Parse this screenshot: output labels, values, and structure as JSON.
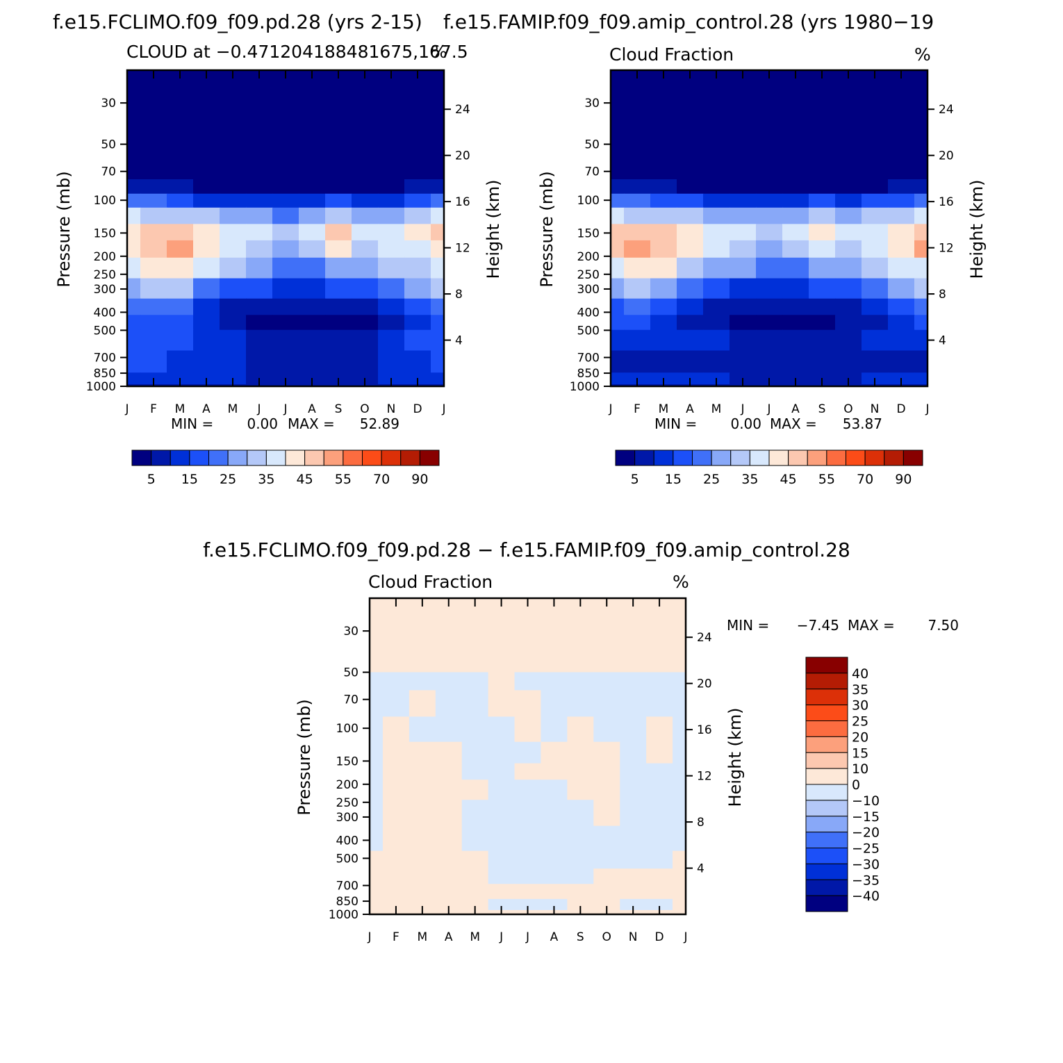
{
  "chart_data": [
    {
      "type": "heatmap",
      "id": "p1",
      "title": "f.e15.FCLIMO.f09_f09.pd.28 (yrs 2-15)",
      "subtitle_left": "CLOUD at -0.471204188481675,167.5",
      "subtitle_right": "%",
      "ylabel": "Pressure (mb)",
      "ylabel_right": "Height (km)",
      "x_ticks": [
        "J",
        "F",
        "M",
        "A",
        "M",
        "J",
        "J",
        "A",
        "S",
        "O",
        "N",
        "D",
        "J"
      ],
      "y_ticks": [
        30,
        50,
        70,
        100,
        150,
        200,
        250,
        300,
        400,
        500,
        700,
        850,
        1000
      ],
      "y_range": [
        20,
        1000
      ],
      "height_ticks": [
        4,
        8,
        12,
        16,
        20,
        24
      ],
      "min_label": "MIN =",
      "min": "0.00",
      "max_label": "MAX =",
      "max": "52.89",
      "colorbar_labels": [
        "5",
        "15",
        "25",
        "35",
        "45",
        "55",
        "70",
        "90"
      ],
      "rows": [
        {
          "p": 20,
          "v": [
            1,
            1,
            1,
            1,
            1,
            1,
            1,
            1,
            1,
            1,
            1,
            1,
            1
          ]
        },
        {
          "p": 70,
          "v": [
            1,
            1,
            1,
            1,
            1,
            1,
            1,
            1,
            1,
            1,
            1,
            1,
            1
          ]
        },
        {
          "p": 85,
          "v": [
            8,
            7,
            6,
            3,
            2,
            2,
            2,
            2,
            3,
            1,
            2,
            5,
            8
          ]
        },
        {
          "p": 100,
          "v": [
            22,
            20,
            18,
            14,
            12,
            11,
            11,
            12,
            15,
            11,
            13,
            17,
            22
          ]
        },
        {
          "p": 120,
          "v": [
            36,
            34,
            33,
            30,
            27,
            25,
            24,
            26,
            34,
            25,
            28,
            34,
            38
          ]
        },
        {
          "p": 150,
          "v": [
            44,
            47,
            47,
            42,
            38,
            35,
            30,
            38,
            49,
            35,
            38,
            43,
            45
          ]
        },
        {
          "p": 180,
          "v": [
            44,
            49,
            50,
            43,
            35,
            30,
            27,
            30,
            40,
            30,
            35,
            38,
            42
          ]
        },
        {
          "p": 230,
          "v": [
            38,
            42,
            41,
            35,
            30,
            25,
            22,
            23,
            28,
            26,
            30,
            33,
            36
          ]
        },
        {
          "p": 300,
          "v": [
            28,
            31,
            30,
            23,
            18,
            15,
            13,
            13,
            15,
            15,
            20,
            25,
            30
          ]
        },
        {
          "p": 380,
          "v": [
            20,
            23,
            20,
            13,
            9,
            6,
            5,
            5,
            6,
            7,
            12,
            16,
            21
          ]
        },
        {
          "p": 450,
          "v": [
            17,
            18,
            15,
            10,
            6,
            2,
            1,
            2,
            2,
            3,
            8,
            13,
            17
          ]
        },
        {
          "p": 550,
          "v": [
            18,
            18,
            16,
            14,
            11,
            8,
            7,
            7,
            7,
            9,
            12,
            15,
            18
          ]
        },
        {
          "p": 750,
          "v": [
            15,
            15,
            14,
            14,
            11,
            9,
            9,
            9,
            9,
            9,
            10,
            13,
            15
          ]
        },
        {
          "p": 950,
          "v": [
            10,
            10,
            10,
            10,
            10,
            9,
            9,
            9,
            9,
            9,
            10,
            10,
            10
          ]
        },
        {
          "p": 1000,
          "v": [
            6,
            6,
            6,
            6,
            6,
            6,
            6,
            6,
            6,
            6,
            6,
            6,
            6
          ]
        }
      ]
    },
    {
      "type": "heatmap",
      "id": "p2",
      "title": "f.e15.FAMIP.f09_f09.amip_control.28 (yrs 1980-19",
      "subtitle_left": "Cloud Fraction",
      "subtitle_right": "%",
      "ylabel": "Pressure (mb)",
      "ylabel_right": "Height (km)",
      "x_ticks": [
        "J",
        "F",
        "M",
        "A",
        "M",
        "J",
        "J",
        "A",
        "S",
        "O",
        "N",
        "D",
        "J"
      ],
      "y_ticks": [
        30,
        50,
        70,
        100,
        150,
        200,
        250,
        300,
        400,
        500,
        700,
        850,
        1000
      ],
      "y_range": [
        20,
        1000
      ],
      "height_ticks": [
        4,
        8,
        12,
        16,
        20,
        24
      ],
      "min_label": "MIN =",
      "min": "0.00",
      "max_label": "MAX =",
      "max": "53.87",
      "colorbar_labels": [
        "5",
        "15",
        "25",
        "35",
        "45",
        "55",
        "70",
        "90"
      ],
      "rows": [
        {
          "p": 20,
          "v": [
            1,
            1,
            1,
            1,
            1,
            1,
            1,
            1,
            1,
            1,
            1,
            1,
            1
          ]
        },
        {
          "p": 70,
          "v": [
            1,
            1,
            1,
            1,
            1,
            1,
            1,
            1,
            1,
            1,
            1,
            1,
            1
          ]
        },
        {
          "p": 85,
          "v": [
            8,
            7,
            6,
            4,
            3,
            2,
            1,
            2,
            3,
            2,
            3,
            5,
            8
          ]
        },
        {
          "p": 100,
          "v": [
            22,
            20,
            18,
            15,
            13,
            12,
            11,
            13,
            16,
            13,
            15,
            18,
            22
          ]
        },
        {
          "p": 120,
          "v": [
            36,
            34,
            33,
            30,
            28,
            27,
            26,
            28,
            32,
            28,
            30,
            34,
            38
          ]
        },
        {
          "p": 150,
          "v": [
            47,
            47,
            46,
            42,
            38,
            35,
            31,
            37,
            44,
            36,
            38,
            43,
            48
          ]
        },
        {
          "p": 180,
          "v": [
            49,
            50,
            48,
            43,
            36,
            30,
            27,
            31,
            38,
            31,
            36,
            42,
            50
          ]
        },
        {
          "p": 230,
          "v": [
            39,
            42,
            40,
            34,
            29,
            25,
            22,
            24,
            28,
            26,
            30,
            35,
            39
          ]
        },
        {
          "p": 300,
          "v": [
            28,
            30,
            28,
            22,
            17,
            14,
            12,
            13,
            15,
            15,
            20,
            25,
            30
          ]
        },
        {
          "p": 380,
          "v": [
            19,
            20,
            18,
            13,
            9,
            6,
            5,
            5,
            6,
            7,
            12,
            16,
            20
          ]
        },
        {
          "p": 450,
          "v": [
            16,
            16,
            14,
            9,
            6,
            4,
            4,
            4,
            4,
            5,
            9,
            13,
            17
          ]
        },
        {
          "p": 550,
          "v": [
            13,
            13,
            12,
            12,
            10,
            9,
            9,
            9,
            9,
            9,
            10,
            11,
            13
          ]
        },
        {
          "p": 750,
          "v": [
            9,
            9,
            9,
            9,
            6,
            5,
            5,
            5,
            5,
            5,
            6,
            8,
            9
          ]
        },
        {
          "p": 950,
          "v": [
            10,
            10,
            10,
            10,
            10,
            9,
            9,
            9,
            9,
            9,
            10,
            10,
            10
          ]
        },
        {
          "p": 1000,
          "v": [
            6,
            6,
            6,
            6,
            6,
            6,
            6,
            6,
            6,
            6,
            6,
            6,
            6
          ]
        }
      ]
    },
    {
      "type": "heatmap",
      "id": "p3",
      "title": "f.e15.FCLIMO.f09_f09.pd.28 - f.e15.FAMIP.f09_f09.amip_control.28",
      "subtitle_left": "Cloud Fraction",
      "subtitle_right": "%",
      "ylabel": "Pressure (mb)",
      "ylabel_right": "Height (km)",
      "x_ticks": [
        "J",
        "F",
        "M",
        "A",
        "M",
        "J",
        "J",
        "A",
        "S",
        "O",
        "N",
        "D",
        "J"
      ],
      "y_ticks": [
        30,
        50,
        70,
        100,
        150,
        200,
        250,
        300,
        400,
        500,
        700,
        850,
        1000
      ],
      "y_range": [
        20,
        1000
      ],
      "height_ticks": [
        4,
        8,
        12,
        16,
        20,
        24
      ],
      "min_label": "MIN =",
      "min": "-7.45",
      "max_label": "MAX =",
      "max": "7.50",
      "colorbar_labels": [
        "40",
        "35",
        "30",
        "25",
        "20",
        "15",
        "10",
        "0",
        "-10",
        "-15",
        "-20",
        "-25",
        "-30",
        "-35",
        "-40"
      ],
      "rows": [
        {
          "p": 20,
          "v": [
            1,
            1,
            1,
            1,
            1,
            1,
            1,
            1,
            1,
            1,
            1,
            1,
            1
          ]
        },
        {
          "p": 48,
          "v": [
            1,
            1,
            1,
            1,
            1,
            1,
            1,
            1,
            1,
            1,
            1,
            1,
            1
          ]
        },
        {
          "p": 52,
          "v": [
            -1,
            -1,
            -1,
            -1,
            -1,
            1,
            -1,
            -1,
            -1,
            -1,
            -1,
            -1,
            -1
          ]
        },
        {
          "p": 75,
          "v": [
            -1,
            -1,
            1,
            -1,
            -1,
            1,
            1,
            -1,
            -1,
            -1,
            -1,
            -1,
            -1
          ]
        },
        {
          "p": 100,
          "v": [
            -1,
            1,
            -1,
            -1,
            -1,
            -1,
            1,
            -1,
            1,
            -1,
            -1,
            1,
            -1
          ]
        },
        {
          "p": 140,
          "v": [
            -1,
            1,
            1,
            1,
            -1,
            -1,
            -1,
            1,
            1,
            1,
            -1,
            1,
            -1
          ]
        },
        {
          "p": 170,
          "v": [
            -1,
            1,
            1,
            1,
            -1,
            -1,
            1,
            1,
            1,
            1,
            -1,
            -1,
            -1
          ]
        },
        {
          "p": 210,
          "v": [
            -1,
            1,
            1,
            1,
            1,
            -1,
            -1,
            -1,
            1,
            1,
            -1,
            -1,
            -1
          ]
        },
        {
          "p": 280,
          "v": [
            -1,
            1,
            1,
            1,
            -1,
            -1,
            -1,
            -1,
            -1,
            1,
            -1,
            -1,
            -1
          ]
        },
        {
          "p": 400,
          "v": [
            -1,
            1,
            1,
            1,
            -1,
            -1,
            -1,
            -1,
            -1,
            -1,
            -1,
            -1,
            -1
          ]
        },
        {
          "p": 520,
          "v": [
            1,
            1,
            1,
            1,
            1,
            -1,
            -1,
            -1,
            -1,
            -1,
            -1,
            -1,
            1
          ]
        },
        {
          "p": 620,
          "v": [
            1,
            1,
            1,
            1,
            1,
            -1,
            -1,
            -1,
            -1,
            1,
            1,
            1,
            1
          ]
        },
        {
          "p": 760,
          "v": [
            1,
            1,
            1,
            1,
            1,
            1,
            1,
            1,
            1,
            1,
            1,
            1,
            1
          ]
        },
        {
          "p": 900,
          "v": [
            1,
            1,
            1,
            1,
            1,
            -1,
            -1,
            -1,
            1,
            1,
            -1,
            -1,
            1
          ]
        },
        {
          "p": 1000,
          "v": [
            1,
            1,
            1,
            1,
            1,
            1,
            1,
            1,
            1,
            1,
            1,
            1,
            1
          ]
        }
      ]
    }
  ],
  "colors": {
    "seq": [
      "#000080",
      "#0018a8",
      "#0030d8",
      "#1c50f8",
      "#4070f8",
      "#88a8f8",
      "#b4c8f8",
      "#d8e8fc",
      "#fde8d8",
      "#fcc8b0",
      "#fca07c",
      "#fc6c40",
      "#fc4c18",
      "#dc3008",
      "#b41c04",
      "#880000"
    ],
    "div_blue": [
      "#000080",
      "#0018a8",
      "#0030d8",
      "#1c50f8",
      "#4070f8",
      "#88a8f8",
      "#b4c8f8",
      "#d8e8fc"
    ],
    "div_red": [
      "#fde8d8",
      "#fcc8b0",
      "#fca07c",
      "#fc6c40",
      "#fc4c18",
      "#dc3008",
      "#b41c04",
      "#880000"
    ]
  }
}
